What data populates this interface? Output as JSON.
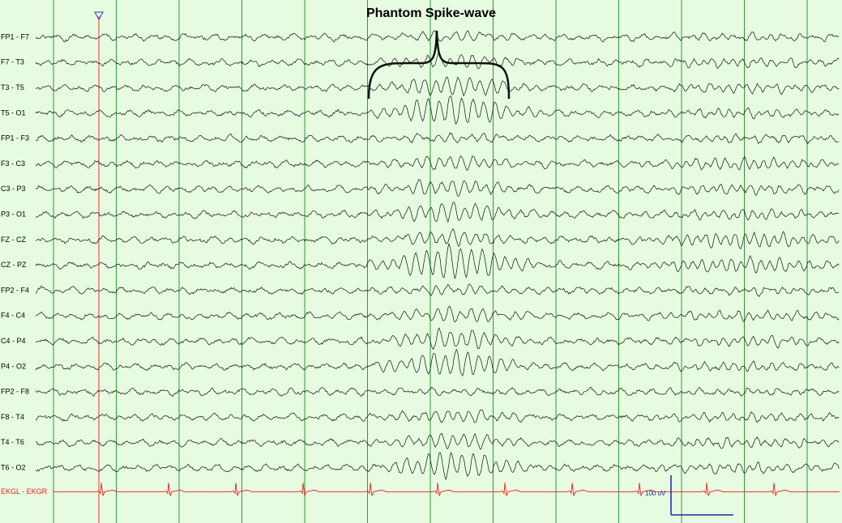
{
  "title": "Phantom Spike-wave",
  "channels": [
    "FP1 - F7",
    "F7 - T3",
    "T3 - T5",
    "T5 - O1",
    "FP1 - F3",
    "F3 - C3",
    "C3 - P3",
    "P3 - O1",
    "FZ - CZ",
    "CZ - PZ",
    "FP2 - F4",
    "F4 - C4",
    "C4 - P4",
    "P4 - O2",
    "FP2 - F8",
    "F8 - T4",
    "T4 - T6",
    "T6 - O2"
  ],
  "ekg_label": "EKGL - EKGR",
  "scale_label": "100 uV"
}
